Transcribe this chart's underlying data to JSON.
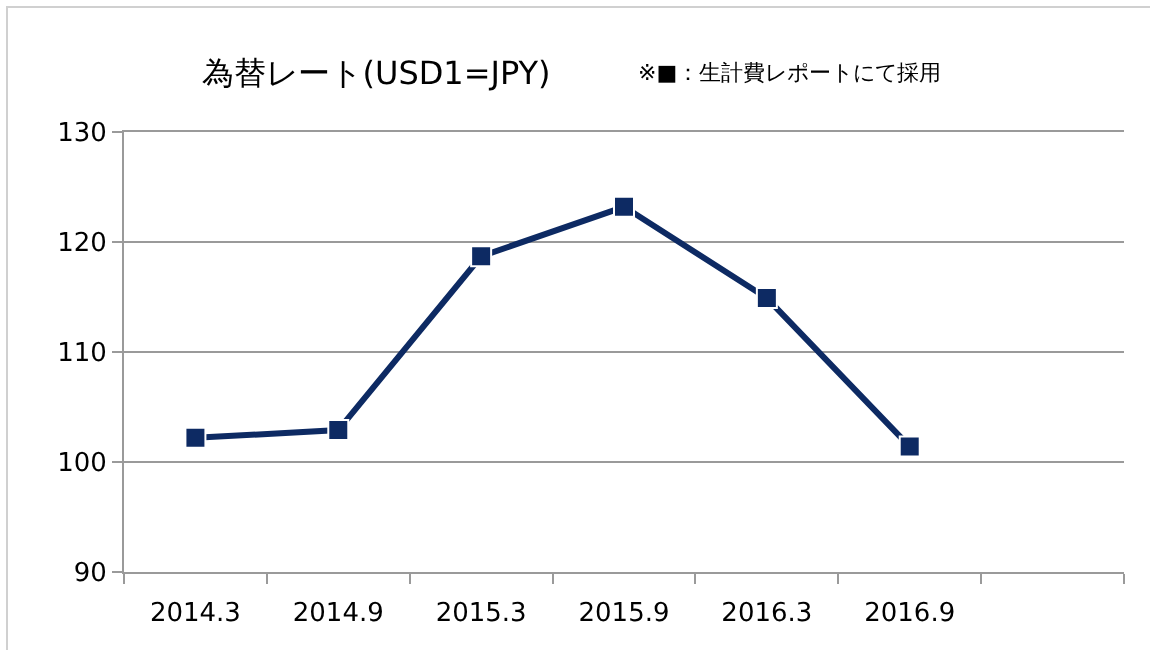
{
  "chart_data": {
    "type": "line",
    "title": "為替レート(USD1=JPY)",
    "annotations": [
      "※■：生計費レポートにて採用"
    ],
    "categories": [
      "2014.3",
      "2014.9",
      "2015.3",
      "2015.9",
      "2016.3",
      "2016.9",
      null
    ],
    "series": [
      {
        "color": "#0d2a63",
        "values": [
          102.2,
          102.9,
          118.7,
          123.2,
          114.9,
          101.4,
          null
        ]
      }
    ],
    "ylim": [
      90,
      130
    ],
    "yticks": [
      90,
      100,
      110,
      120,
      130
    ],
    "grid": "y",
    "marker": "square",
    "line_style": "solid"
  }
}
